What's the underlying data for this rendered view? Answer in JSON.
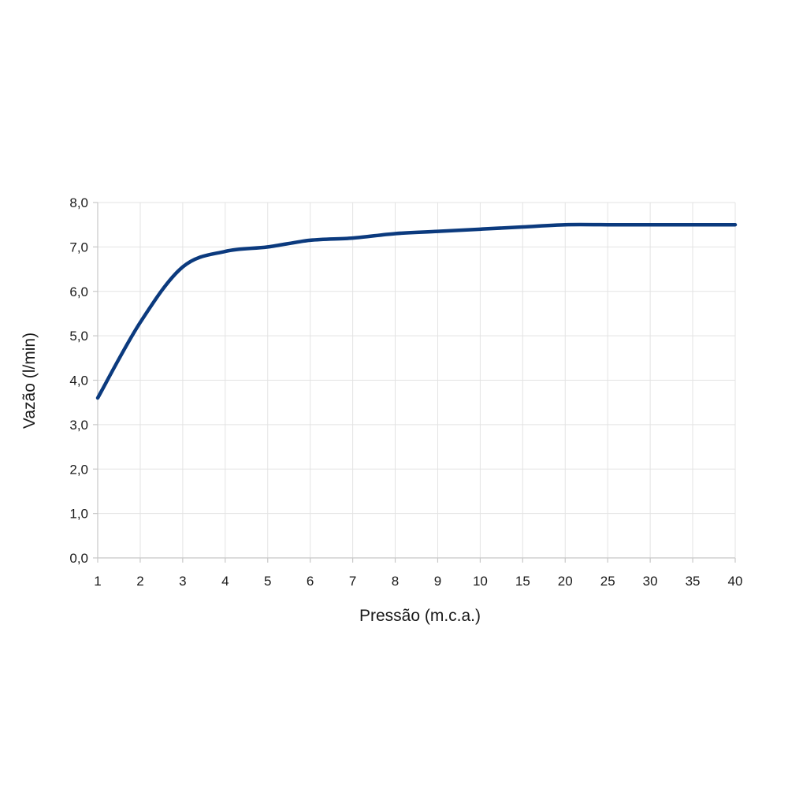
{
  "chart_data": {
    "type": "line",
    "title": "",
    "xlabel": "Pressão (m.c.a.)",
    "ylabel": "Vazão (l/min)",
    "categories": [
      "1",
      "2",
      "3",
      "4",
      "5",
      "6",
      "7",
      "8",
      "9",
      "10",
      "15",
      "20",
      "25",
      "30",
      "35",
      "40"
    ],
    "series": [
      {
        "name": "",
        "color": "#0b3a7e",
        "values": [
          3.6,
          5.3,
          6.55,
          6.9,
          7.0,
          7.15,
          7.2,
          7.3,
          7.35,
          7.4,
          7.45,
          7.5,
          7.5,
          7.5,
          7.5,
          7.5
        ]
      }
    ],
    "ylim": [
      0,
      8
    ],
    "y_ticks": [
      "0,0",
      "1,0",
      "2,0",
      "3,0",
      "4,0",
      "5,0",
      "6,0",
      "7,0",
      "8,0"
    ],
    "grid": true,
    "legend": "none"
  }
}
